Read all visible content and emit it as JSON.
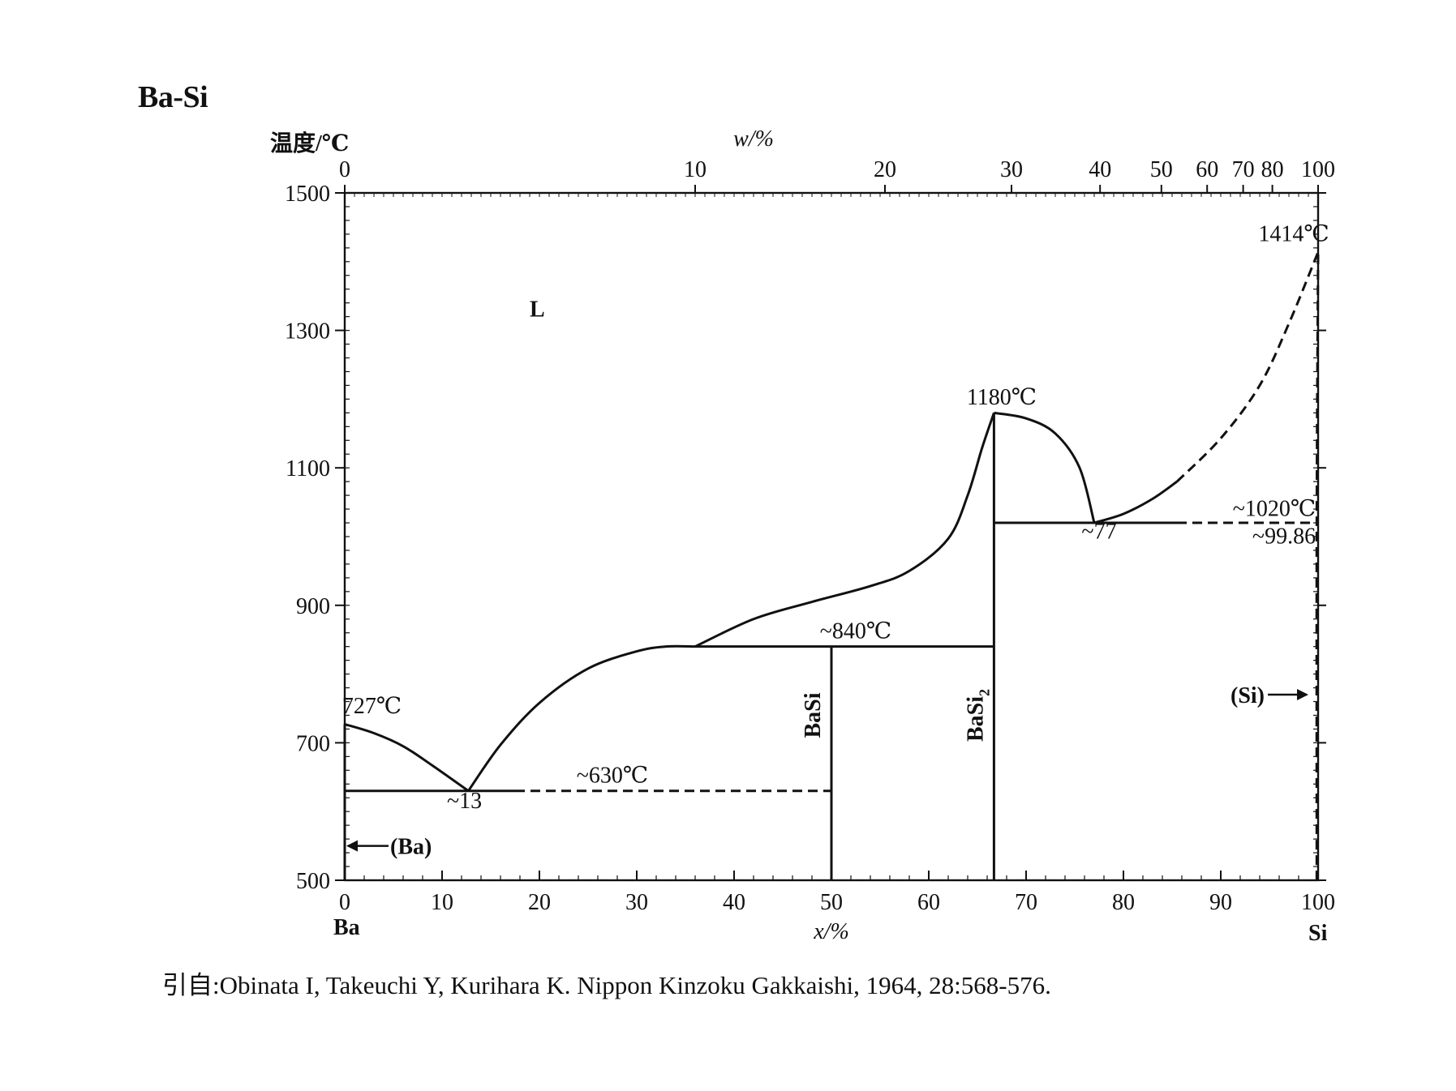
{
  "page_title": "Ba-Si",
  "citation": "引自:Obinata I, Takeuchi Y, Kurihara K. Nippon Kinzoku Gakkaishi, 1964, 28:568-576.",
  "chart_data": {
    "type": "phase_diagram",
    "title": "Ba-Si",
    "ylabel": "温度/℃",
    "xlabel": "x/%",
    "x2label": "w/%",
    "ylim": [
      500,
      1500
    ],
    "xlim": [
      0,
      100
    ],
    "y_ticks": [
      "500",
      "700",
      "900",
      "1100",
      "1300",
      "1500"
    ],
    "y_tick_values": [
      500,
      700,
      900,
      1100,
      1300,
      1500
    ],
    "x_ticks": [
      "0",
      "10",
      "20",
      "30",
      "40",
      "50",
      "60",
      "70",
      "80",
      "90",
      "100"
    ],
    "x_tick_values": [
      0,
      10,
      20,
      30,
      40,
      50,
      60,
      70,
      80,
      90,
      100
    ],
    "x_end_labels": {
      "left": "Ba",
      "right": "Si"
    },
    "w_ticks": [
      {
        "label": "0",
        "x": 0
      },
      {
        "label": "10",
        "x": 36.0
      },
      {
        "label": "20",
        "x": 55.5
      },
      {
        "label": "30",
        "x": 68.5
      },
      {
        "label": "40",
        "x": 77.6
      },
      {
        "label": "50",
        "x": 83.9
      },
      {
        "label": "60",
        "x": 88.6
      },
      {
        "label": "70",
        "x": 92.3
      },
      {
        "label": "80",
        "x": 95.3
      },
      {
        "label": "100",
        "x": 100
      }
    ],
    "phases": [
      {
        "label": "L",
        "x": 19,
        "T": 1320
      },
      {
        "label": "BaSi",
        "x": 50,
        "T": 740,
        "vertical": true
      },
      {
        "label": "BaSi2",
        "x": 66.7,
        "T": 740,
        "vertical": true
      },
      {
        "label": "(Ba)",
        "x": 2,
        "T": 550,
        "arrow": "left"
      },
      {
        "label": "(Si)",
        "x": 99.5,
        "T": 770,
        "arrow": "right"
      }
    ],
    "annotations": [
      {
        "text": "727℃",
        "x": 2.8,
        "T": 743
      },
      {
        "text": "~13",
        "x": 12.3,
        "T": 605
      },
      {
        "text": "~630℃",
        "x": 27.5,
        "T": 642
      },
      {
        "text": "~840℃",
        "x": 52.5,
        "T": 852
      },
      {
        "text": "1180℃",
        "x": 67.5,
        "T": 1192
      },
      {
        "text": "~77",
        "x": 77.5,
        "T": 997
      },
      {
        "text": "~1020℃",
        "x": 95.5,
        "T": 1030
      },
      {
        "text": "~99.86",
        "x": 96.5,
        "T": 990
      },
      {
        "text": "1414℃",
        "x": 97.5,
        "T": 1430
      }
    ],
    "curves": [
      {
        "name": "liquidus-ba",
        "style": "solid",
        "x": [
          0,
          3,
          6,
          9,
          12.7
        ],
        "T": [
          727,
          714,
          695,
          667,
          630
        ]
      },
      {
        "name": "liquidus-basi",
        "style": "solid",
        "x": [
          12.7,
          16,
          20,
          25,
          30,
          33,
          36
        ],
        "T": [
          630,
          697,
          758,
          808,
          833,
          840,
          840
        ]
      },
      {
        "name": "liquidus-basi2",
        "style": "solid",
        "x": [
          36,
          42,
          48,
          54,
          58,
          62,
          64,
          65.5,
          66.7
        ],
        "T": [
          840,
          880,
          905,
          928,
          950,
          997,
          1060,
          1130,
          1180
        ]
      },
      {
        "name": "liquidus-basi2-right",
        "style": "solid",
        "x": [
          66.7,
          70,
          73,
          75.5,
          77
        ],
        "T": [
          1180,
          1172,
          1150,
          1100,
          1020
        ]
      },
      {
        "name": "liquidus-si",
        "style": "solid",
        "x": [
          77,
          80,
          83,
          85.5
        ],
        "T": [
          1020,
          1033,
          1055,
          1080
        ]
      },
      {
        "name": "liquidus-si-dashed",
        "style": "dashed",
        "x": [
          85.5,
          90,
          94,
          97,
          100
        ],
        "T": [
          1080,
          1143,
          1220,
          1310,
          1414
        ]
      },
      {
        "name": "eutectic-630",
        "style": "solid",
        "x": [
          0,
          17.5
        ],
        "T": [
          630,
          630
        ]
      },
      {
        "name": "eutectic-630-dashed",
        "style": "dashed",
        "x": [
          17.5,
          50
        ],
        "T": [
          630,
          630
        ]
      },
      {
        "name": "peritectic-840",
        "style": "solid",
        "x": [
          36,
          66.7
        ],
        "T": [
          840,
          840
        ]
      },
      {
        "name": "eutectic-1020",
        "style": "solid",
        "x": [
          66.7,
          85.5
        ],
        "T": [
          1020,
          1020
        ]
      },
      {
        "name": "eutectic-1020-dashed",
        "style": "dashed",
        "x": [
          85.5,
          100
        ],
        "T": [
          1020,
          1020
        ]
      },
      {
        "name": "basi-line",
        "style": "solid",
        "x": [
          50,
          50
        ],
        "T": [
          500,
          840
        ]
      },
      {
        "name": "basi2-line",
        "style": "solid",
        "x": [
          66.7,
          66.7
        ],
        "T": [
          500,
          1180
        ]
      },
      {
        "name": "ba-solvus",
        "style": "solid",
        "x": [
          0,
          0
        ],
        "T": [
          500,
          727
        ]
      },
      {
        "name": "si-solvus",
        "style": "dashed",
        "x": [
          99.86,
          99.86,
          100
        ],
        "T": [
          500,
          1020,
          1414
        ]
      }
    ]
  }
}
